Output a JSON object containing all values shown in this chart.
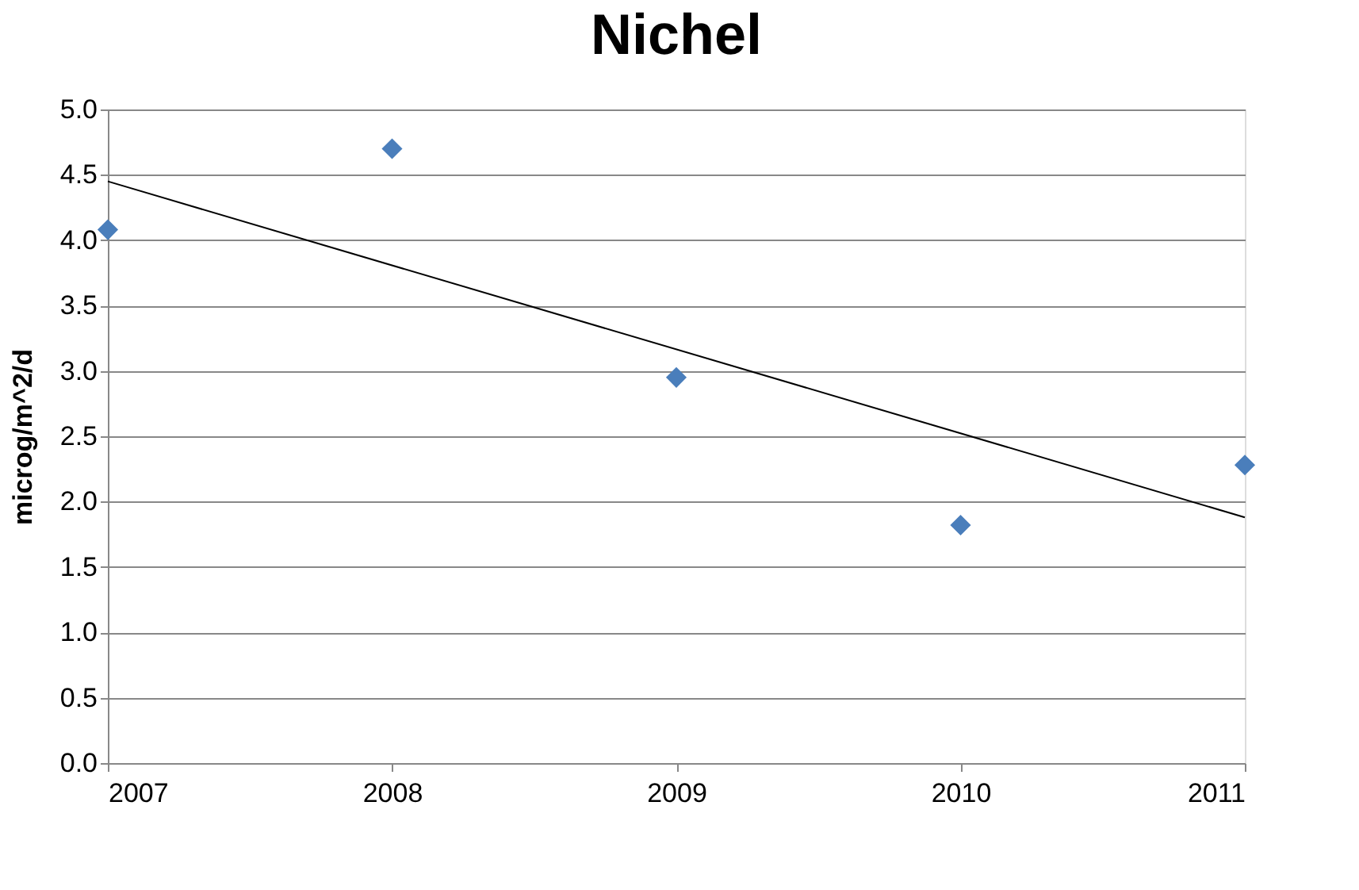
{
  "chart_data": {
    "type": "scatter",
    "title": "Nichel",
    "ylabel": "microg/m^2/d",
    "x": [
      2007,
      2008,
      2009,
      2010,
      2011
    ],
    "series": [
      {
        "color": "#4a7ebb",
        "marker": "diamond",
        "values": [
          4.08,
          4.7,
          2.95,
          1.82,
          2.28
        ]
      },
      {
        "type": "line",
        "color": "#000000",
        "marker": "none",
        "line_style": "solid",
        "x": [
          2007,
          2011
        ],
        "values": [
          4.45,
          1.88
        ]
      }
    ],
    "xlim": [
      2007,
      2011
    ],
    "xticks": [
      2007,
      2008,
      2009,
      2010,
      2011
    ],
    "ylim": [
      0,
      5
    ],
    "yticks": [
      {
        "value": 0,
        "label": "0.0"
      },
      {
        "value": 0.5,
        "label": "0.5"
      },
      {
        "value": 1,
        "label": "1.0"
      },
      {
        "value": 1.5,
        "label": "1.5"
      },
      {
        "value": 2,
        "label": "2.0"
      },
      {
        "value": 2.5,
        "label": "2.5"
      },
      {
        "value": 3,
        "label": "3.0"
      },
      {
        "value": 3.5,
        "label": "3.5"
      },
      {
        "value": 4,
        "label": "4.0"
      },
      {
        "value": 4.5,
        "label": "4.5"
      },
      {
        "value": 5,
        "label": "5.0"
      }
    ],
    "grid": "y"
  }
}
